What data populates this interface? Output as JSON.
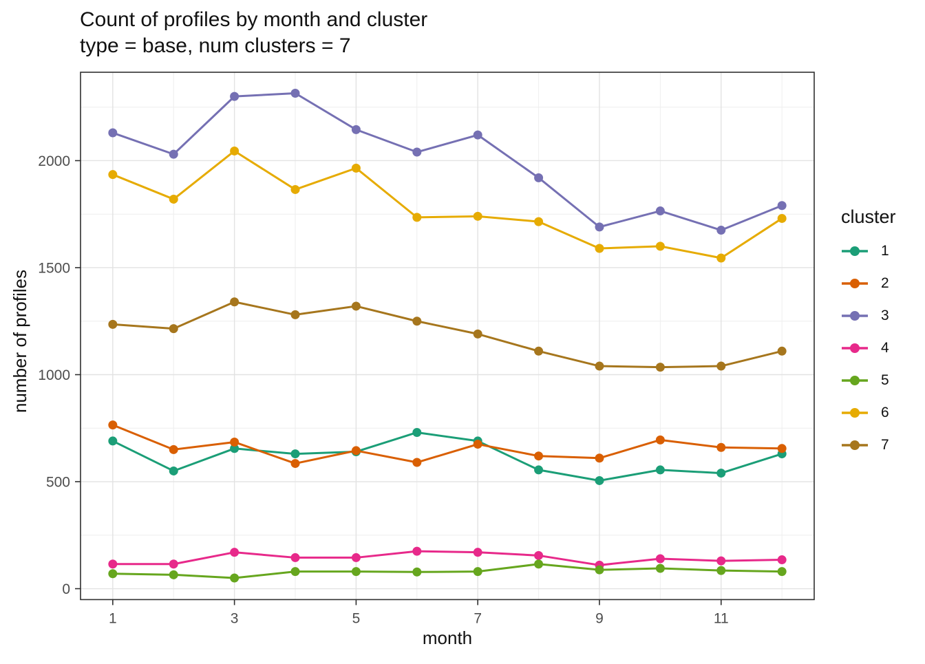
{
  "title": {
    "line1": "Count of profiles by month and cluster",
    "line2": "type = base, num clusters = 7"
  },
  "axes": {
    "x_label": "month",
    "y_label": "number of profiles"
  },
  "legend": {
    "title": "cluster",
    "entries": [
      {
        "label": "1",
        "color": "#1B9E77"
      },
      {
        "label": "2",
        "color": "#D95F02"
      },
      {
        "label": "3",
        "color": "#7570B3"
      },
      {
        "label": "4",
        "color": "#E7298A"
      },
      {
        "label": "5",
        "color": "#66A61E"
      },
      {
        "label": "6",
        "color": "#E6AB02"
      },
      {
        "label": "7",
        "color": "#A6761D"
      }
    ]
  },
  "style_colors": {
    "grid_major": "#e2e2e2",
    "grid_minor": "#eeeeee",
    "panel_border": "#2f2f2f",
    "tick_text": "#4d4d4d",
    "title_text": "#111111"
  },
  "chart_data": {
    "type": "line",
    "title": "Count of profiles by month and cluster",
    "subtitle": "type = base, num clusters = 7",
    "xlabel": "month",
    "ylabel": "number of profiles",
    "x": [
      1,
      2,
      3,
      4,
      5,
      6,
      7,
      8,
      9,
      10,
      11,
      12
    ],
    "xlim": [
      0.47,
      12.53
    ],
    "ylim": [
      -51,
      2413
    ],
    "x_major_ticks": [
      1,
      3,
      5,
      7,
      9,
      11
    ],
    "x_minor_ticks": [
      2,
      4,
      6,
      8,
      10,
      12
    ],
    "y_major_ticks": [
      0,
      500,
      1000,
      1500,
      2000
    ],
    "y_minor_ticks": [
      250,
      750,
      1250,
      1750,
      2250
    ],
    "grid": "major+minor",
    "legend_position": "right",
    "legend_title": "cluster",
    "series": [
      {
        "name": "1",
        "color": "#1B9E77",
        "values": [
          690,
          550,
          655,
          630,
          640,
          730,
          690,
          555,
          505,
          555,
          540,
          630
        ]
      },
      {
        "name": "2",
        "color": "#D95F02",
        "values": [
          765,
          650,
          685,
          585,
          645,
          590,
          675,
          620,
          610,
          695,
          660,
          655
        ]
      },
      {
        "name": "3",
        "color": "#7570B3",
        "values": [
          2130,
          2030,
          2300,
          2315,
          2145,
          2040,
          2120,
          1920,
          1690,
          1765,
          1675,
          1790
        ]
      },
      {
        "name": "4",
        "color": "#E7298A",
        "values": [
          115,
          115,
          170,
          145,
          145,
          175,
          170,
          155,
          110,
          140,
          130,
          135
        ]
      },
      {
        "name": "5",
        "color": "#66A61E",
        "values": [
          70,
          65,
          50,
          80,
          80,
          78,
          80,
          115,
          88,
          95,
          85,
          80
        ]
      },
      {
        "name": "6",
        "color": "#E6AB02",
        "values": [
          1935,
          1820,
          2045,
          1865,
          1965,
          1735,
          1740,
          1715,
          1590,
          1600,
          1545,
          1730
        ]
      },
      {
        "name": "7",
        "color": "#A6761D",
        "values": [
          1235,
          1215,
          1340,
          1280,
          1320,
          1250,
          1190,
          1110,
          1040,
          1035,
          1040,
          1110
        ]
      }
    ]
  }
}
